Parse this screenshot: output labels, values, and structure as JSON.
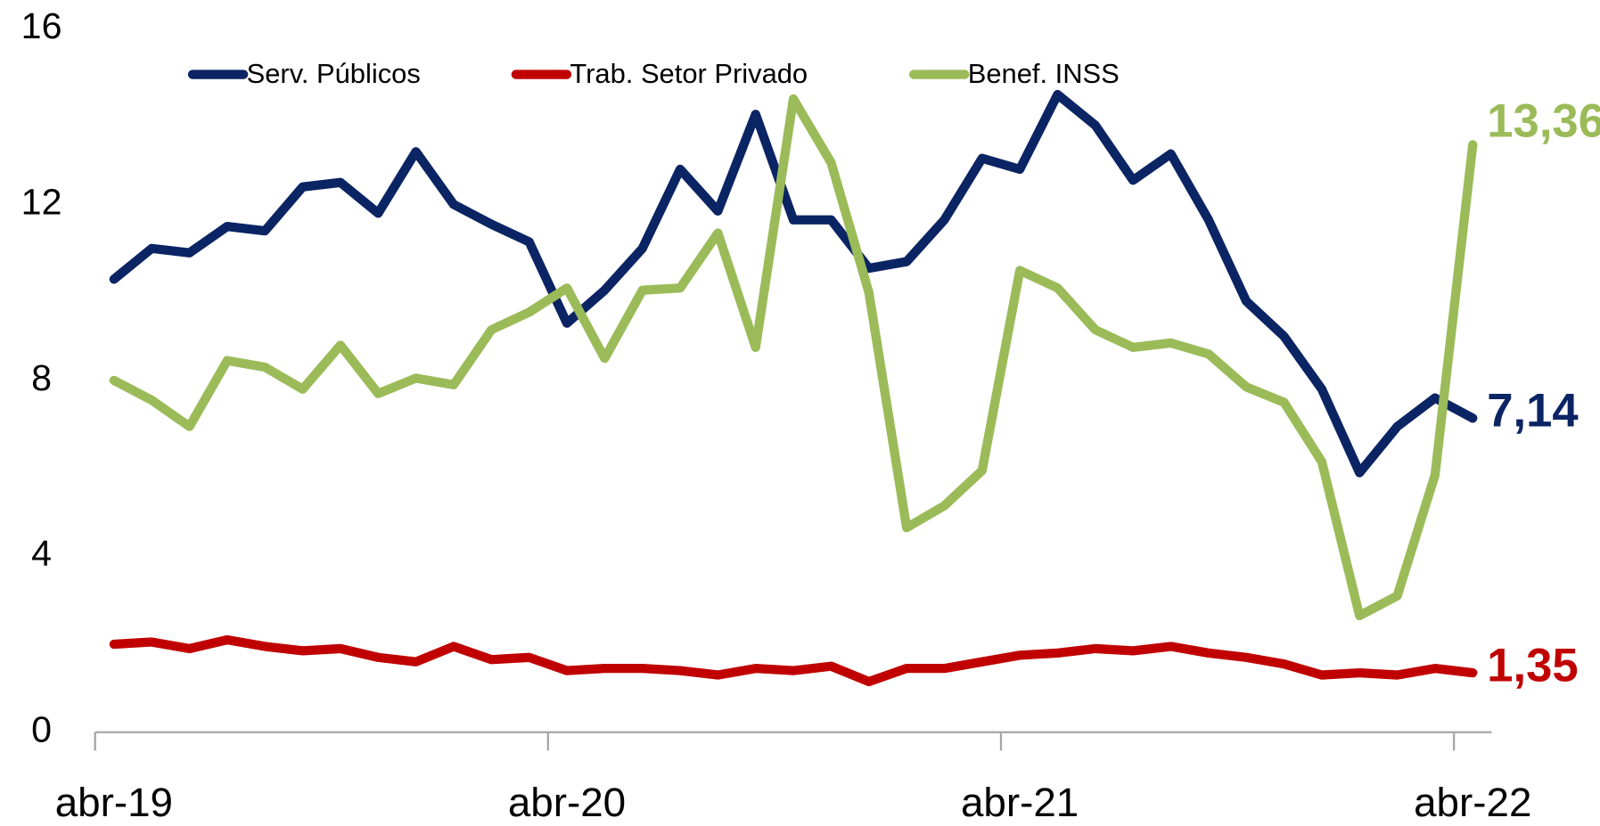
{
  "chart_data": {
    "type": "line",
    "categories": [
      "abr-19",
      null,
      null,
      null,
      null,
      null,
      null,
      null,
      null,
      null,
      null,
      null,
      "abr-20",
      null,
      null,
      null,
      null,
      null,
      null,
      null,
      null,
      null,
      null,
      null,
      "abr-21",
      null,
      null,
      null,
      null,
      null,
      null,
      null,
      null,
      null,
      null,
      null,
      "abr-22"
    ],
    "ylim": [
      0,
      16
    ],
    "yticks": [
      0,
      4,
      8,
      12,
      16
    ],
    "grid": false,
    "legend": "top",
    "series": [
      {
        "name": "Serv. Públicos",
        "color": "#0b2463",
        "values": [
          10.3,
          11.0,
          10.9,
          11.5,
          11.4,
          12.4,
          12.5,
          11.8,
          13.2,
          12.0,
          11.55,
          11.15,
          9.3,
          10.05,
          11.0,
          12.8,
          11.85,
          14.05,
          11.65,
          11.65,
          10.55,
          10.7,
          11.65,
          13.05,
          12.8,
          14.5,
          13.8,
          12.55,
          13.15,
          11.65,
          9.8,
          9.0,
          7.8,
          5.9,
          6.95,
          7.6,
          7.14
        ],
        "value_labels": [
          null,
          null,
          null,
          null,
          null,
          null,
          null,
          null,
          null,
          null,
          null,
          null,
          null,
          null,
          null,
          null,
          null,
          null,
          null,
          null,
          null,
          null,
          null,
          null,
          null,
          null,
          null,
          null,
          null,
          null,
          null,
          null,
          null,
          null,
          null,
          null,
          "7,14"
        ]
      },
      {
        "name": "Trab. Setor Privado",
        "color": "#c00000",
        "values": [
          2.0,
          2.05,
          1.9,
          2.1,
          1.95,
          1.85,
          1.9,
          1.7,
          1.6,
          1.95,
          1.65,
          1.7,
          1.4,
          1.45,
          1.45,
          1.4,
          1.3,
          1.45,
          1.4,
          1.5,
          1.15,
          1.45,
          1.45,
          1.6,
          1.75,
          1.8,
          1.9,
          1.85,
          1.95,
          1.8,
          1.7,
          1.55,
          1.3,
          1.35,
          1.3,
          1.45,
          1.35
        ],
        "value_labels": [
          null,
          null,
          null,
          null,
          null,
          null,
          null,
          null,
          null,
          null,
          null,
          null,
          null,
          null,
          null,
          null,
          null,
          null,
          null,
          null,
          null,
          null,
          null,
          null,
          null,
          null,
          null,
          null,
          null,
          null,
          null,
          null,
          null,
          null,
          null,
          null,
          "1,35"
        ]
      },
      {
        "name": "Benef. INSS",
        "color": "#9bbb59",
        "values": [
          8.0,
          7.55,
          6.95,
          8.45,
          8.3,
          7.8,
          8.8,
          7.7,
          8.05,
          7.9,
          9.15,
          9.55,
          10.1,
          8.5,
          10.05,
          10.1,
          11.35,
          8.75,
          14.4,
          12.95,
          10.0,
          4.65,
          5.15,
          5.95,
          10.5,
          10.1,
          9.15,
          8.75,
          8.85,
          8.6,
          7.85,
          7.5,
          6.15,
          2.65,
          3.1,
          5.85,
          13.36
        ],
        "value_labels": [
          null,
          null,
          null,
          null,
          null,
          null,
          null,
          null,
          null,
          null,
          null,
          null,
          null,
          null,
          null,
          null,
          null,
          null,
          null,
          null,
          null,
          null,
          null,
          null,
          null,
          null,
          null,
          null,
          null,
          null,
          null,
          null,
          null,
          null,
          null,
          null,
          "13,36"
        ]
      }
    ]
  }
}
